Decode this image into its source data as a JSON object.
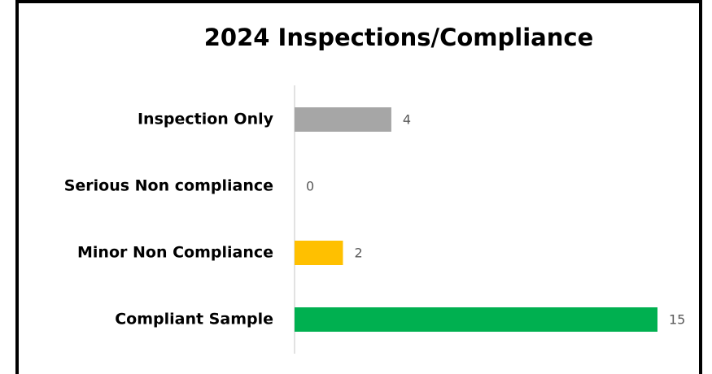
{
  "chart_data": {
    "type": "bar",
    "orientation": "horizontal",
    "title": "2024 Inspections/Compliance",
    "categories": [
      "Inspection Only",
      "Serious Non compliance",
      "Minor Non Compliance",
      "Compliant Sample"
    ],
    "values": [
      4,
      0,
      2,
      15
    ],
    "colors": [
      "#a6a6a6",
      "#c00000",
      "#ffc000",
      "#00b050"
    ],
    "xlim": [
      0,
      15
    ]
  }
}
